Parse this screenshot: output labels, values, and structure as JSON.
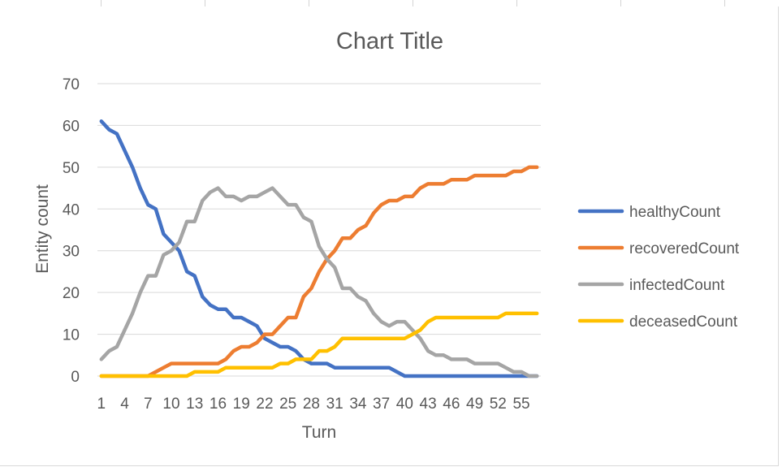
{
  "chart_data": {
    "type": "line",
    "title": "Chart Title",
    "xlabel": "Turn",
    "ylabel": "Entity count",
    "ylim": [
      0,
      70
    ],
    "yticks": [
      0,
      10,
      20,
      30,
      40,
      50,
      60,
      70
    ],
    "xtick_labels": [
      "1",
      "4",
      "7",
      "10",
      "13",
      "16",
      "19",
      "22",
      "25",
      "28",
      "31",
      "34",
      "37",
      "40",
      "43",
      "46",
      "49",
      "52",
      "55"
    ],
    "grid": "horizontal",
    "legend_position": "right",
    "x": [
      1,
      2,
      3,
      4,
      5,
      6,
      7,
      8,
      9,
      10,
      11,
      12,
      13,
      14,
      15,
      16,
      17,
      18,
      19,
      20,
      21,
      22,
      23,
      24,
      25,
      26,
      27,
      28,
      29,
      30,
      31,
      32,
      33,
      34,
      35,
      36,
      37,
      38,
      39,
      40,
      41,
      42,
      43,
      44,
      45,
      46,
      47,
      48,
      49,
      50,
      51,
      52,
      53,
      54,
      55,
      56,
      57
    ],
    "series": [
      {
        "name": "healthyCount",
        "color": "#4472C4",
        "values": [
          61,
          59,
          58,
          54,
          50,
          45,
          41,
          40,
          34,
          32,
          30,
          25,
          24,
          19,
          17,
          16,
          16,
          14,
          14,
          13,
          12,
          9,
          8,
          7,
          7,
          6,
          4,
          3,
          3,
          3,
          2,
          2,
          2,
          2,
          2,
          2,
          2,
          2,
          1,
          0,
          0,
          0,
          0,
          0,
          0,
          0,
          0,
          0,
          0,
          0,
          0,
          0,
          0,
          0,
          0,
          0,
          0
        ]
      },
      {
        "name": "recoveredCount",
        "color": "#ED7D31",
        "values": [
          0,
          0,
          0,
          0,
          0,
          0,
          0,
          1,
          2,
          3,
          3,
          3,
          3,
          3,
          3,
          3,
          4,
          6,
          7,
          7,
          8,
          10,
          10,
          12,
          14,
          14,
          19,
          21,
          25,
          28,
          30,
          33,
          33,
          35,
          36,
          39,
          41,
          42,
          42,
          43,
          43,
          45,
          46,
          46,
          46,
          47,
          47,
          47,
          48,
          48,
          48,
          48,
          48,
          49,
          49,
          50,
          50
        ]
      },
      {
        "name": "infectedCount",
        "color": "#A5A5A5",
        "values": [
          4,
          6,
          7,
          11,
          15,
          20,
          24,
          24,
          29,
          30,
          32,
          37,
          37,
          42,
          44,
          45,
          43,
          43,
          42,
          43,
          43,
          44,
          45,
          43,
          41,
          41,
          38,
          37,
          31,
          28,
          26,
          21,
          21,
          19,
          18,
          15,
          13,
          12,
          13,
          13,
          11,
          9,
          6,
          5,
          5,
          4,
          4,
          4,
          3,
          3,
          3,
          3,
          2,
          1,
          1,
          0,
          0
        ]
      },
      {
        "name": "deceasedCount",
        "color": "#FFC000",
        "values": [
          0,
          0,
          0,
          0,
          0,
          0,
          0,
          0,
          0,
          0,
          0,
          0,
          1,
          1,
          1,
          1,
          2,
          2,
          2,
          2,
          2,
          2,
          2,
          3,
          3,
          4,
          4,
          4,
          6,
          6,
          7,
          9,
          9,
          9,
          9,
          9,
          9,
          9,
          9,
          9,
          10,
          11,
          13,
          14,
          14,
          14,
          14,
          14,
          14,
          14,
          14,
          14,
          15,
          15,
          15,
          15,
          15
        ]
      }
    ]
  }
}
